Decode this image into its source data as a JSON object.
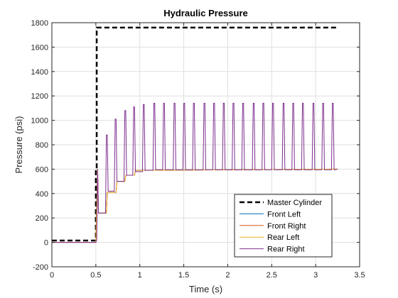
{
  "chart_data": {
    "type": "line",
    "title": "Hydraulic Pressure",
    "xlabel": "Time (s)",
    "ylabel": "Pressure (psi)",
    "xlim": [
      0,
      3.5
    ],
    "ylim": [
      -200,
      1800
    ],
    "xticks": [
      0,
      0.5,
      1,
      1.5,
      2,
      2.5,
      3,
      3.5
    ],
    "xtick_labels": [
      "0",
      "0.5",
      "1",
      "1.5",
      "2",
      "2.5",
      "3",
      "3.5"
    ],
    "yticks": [
      -200,
      0,
      200,
      400,
      600,
      800,
      1000,
      1200,
      1400,
      1600,
      1800
    ],
    "ytick_labels": [
      "-200",
      "0",
      "200",
      "400",
      "600",
      "800",
      "1000",
      "1200",
      "1400",
      "1600",
      "1800"
    ],
    "grid": true,
    "legend_position": "bottom-right",
    "series": [
      {
        "name": "Master Cylinder",
        "color": "#000000",
        "style": "dashed",
        "x": [
          0.0,
          0.5,
          0.5,
          0.51,
          0.51,
          3.25
        ],
        "y": [
          15,
          15,
          600,
          600,
          1760,
          1760
        ]
      },
      {
        "name": "Front Left",
        "color": "#0072BD",
        "style": "solid",
        "x": [
          0.0,
          0.5,
          0.52,
          0.53,
          0.62,
          0.63,
          0.73,
          0.74,
          0.83,
          0.84,
          0.94,
          0.95,
          3.25
        ],
        "y": [
          0,
          0,
          600,
          240,
          240,
          410,
          410,
          500,
          500,
          550,
          550,
          590,
          600
        ]
      },
      {
        "name": "Front Right",
        "color": "#D95319",
        "style": "solid",
        "x": [
          0.0,
          0.5,
          0.52,
          0.53,
          0.62,
          0.63,
          0.73,
          0.74,
          0.83,
          0.84,
          0.94,
          0.95,
          3.25
        ],
        "y": [
          0,
          0,
          600,
          240,
          240,
          410,
          410,
          500,
          500,
          550,
          550,
          590,
          600
        ]
      },
      {
        "name": "Rear Left",
        "color": "#EDB120",
        "style": "solid",
        "x": [
          0.0,
          0.5,
          0.52,
          0.53,
          0.62,
          0.63,
          0.73,
          0.74,
          0.83,
          0.84,
          0.94,
          0.95,
          3.25
        ],
        "y": [
          0,
          0,
          600,
          240,
          240,
          410,
          410,
          500,
          500,
          550,
          550,
          590,
          600
        ]
      },
      {
        "name": "Rear Right",
        "color": "#7E2F8E",
        "style": "solid",
        "x": [
          0.0,
          0.5,
          0.51,
          0.52,
          0.53,
          0.61,
          0.62,
          0.63,
          0.64,
          0.65,
          0.71,
          0.72,
          0.73,
          0.74,
          0.75,
          0.82,
          0.83,
          0.84,
          0.85,
          0.86,
          0.92,
          0.93,
          0.94,
          0.95,
          0.96,
          1.03,
          1.04,
          1.05,
          1.06,
          1.07,
          1.15,
          1.16,
          1.17,
          1.18,
          1.19,
          1.26,
          1.27,
          1.28,
          1.29,
          1.3,
          1.38,
          1.39,
          1.4,
          1.41,
          1.42,
          1.49,
          1.5,
          1.51,
          1.52,
          1.53,
          1.6,
          1.61,
          1.62,
          1.63,
          1.64,
          1.72,
          1.73,
          1.74,
          1.75,
          1.76,
          1.83,
          1.84,
          1.85,
          1.86,
          1.87,
          1.94,
          1.95,
          1.96,
          1.97,
          1.98,
          2.05,
          2.06,
          2.07,
          2.08,
          2.09,
          2.16,
          2.17,
          2.18,
          2.19,
          2.2,
          2.28,
          2.29,
          2.3,
          2.31,
          2.32,
          2.39,
          2.4,
          2.41,
          2.42,
          2.43,
          2.5,
          2.51,
          2.52,
          2.53,
          2.54,
          2.62,
          2.63,
          2.64,
          2.65,
          2.66,
          2.73,
          2.74,
          2.75,
          2.76,
          2.77,
          2.84,
          2.85,
          2.86,
          2.87,
          2.88,
          2.96,
          2.97,
          2.98,
          2.99,
          3.0,
          3.07,
          3.08,
          3.09,
          3.1,
          3.11,
          3.18,
          3.19,
          3.2,
          3.21,
          3.22,
          3.25
        ],
        "y": [
          0,
          0,
          20,
          600,
          240,
          240,
          880,
          880,
          420,
          420,
          420,
          1010,
          1010,
          500,
          500,
          500,
          1080,
          1080,
          550,
          550,
          550,
          1110,
          1110,
          580,
          580,
          580,
          1130,
          1130,
          590,
          590,
          590,
          1140,
          1140,
          595,
          595,
          595,
          1140,
          1140,
          595,
          595,
          595,
          1140,
          1140,
          595,
          595,
          595,
          1140,
          1140,
          595,
          595,
          595,
          1140,
          1140,
          595,
          595,
          595,
          1140,
          1140,
          595,
          595,
          595,
          1140,
          1140,
          595,
          595,
          595,
          1140,
          1140,
          595,
          595,
          595,
          1140,
          1140,
          595,
          595,
          595,
          1140,
          1140,
          595,
          595,
          595,
          1140,
          1140,
          595,
          595,
          595,
          1140,
          1140,
          595,
          595,
          595,
          1140,
          1140,
          595,
          595,
          595,
          1140,
          1140,
          595,
          595,
          595,
          1140,
          1140,
          595,
          595,
          595,
          1140,
          1140,
          595,
          595,
          595,
          1140,
          1140,
          595,
          595,
          595,
          1140,
          1140,
          595,
          595,
          595,
          1140,
          1140,
          595,
          595,
          600
        ]
      }
    ]
  }
}
